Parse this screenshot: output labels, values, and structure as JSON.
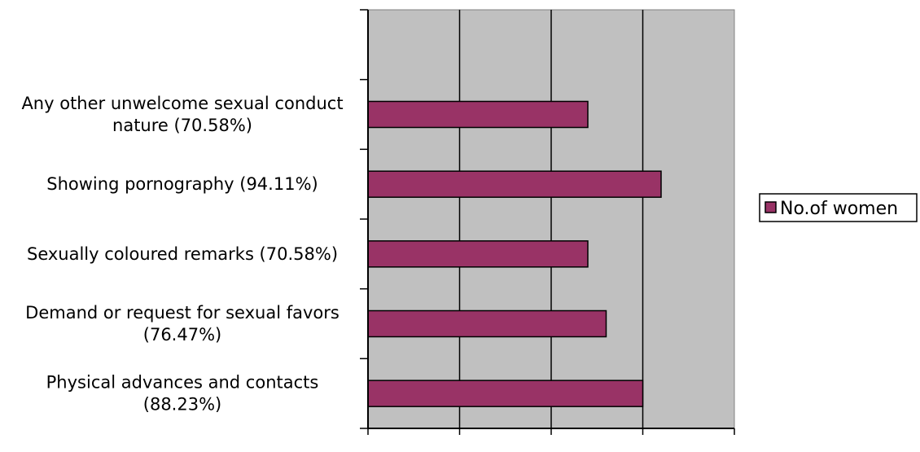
{
  "chart_data": {
    "type": "bar",
    "orientation": "horizontal",
    "categories": [
      [
        "Physical advances and contacts",
        "(88.23%)"
      ],
      [
        "Demand or request for sexual favors",
        "(76.47%)"
      ],
      [
        "Sexually coloured remarks (70.58%)"
      ],
      [
        "Showing pornography (94.11%)"
      ],
      [
        "Any other unwelcome sexual conduct",
        "nature (70.58%)"
      ]
    ],
    "series": [
      {
        "name": "No.of women",
        "values": [
          15,
          13,
          12,
          16,
          12
        ],
        "color": "#993366"
      }
    ],
    "xlim": [
      0,
      20
    ],
    "xticks": [
      "0",
      "5",
      "10",
      "15",
      "20"
    ],
    "slots": 6,
    "grid": true,
    "plot_background": "#c0c0c0",
    "legend_position": "right",
    "title": "",
    "xlabel": "",
    "ylabel": ""
  }
}
